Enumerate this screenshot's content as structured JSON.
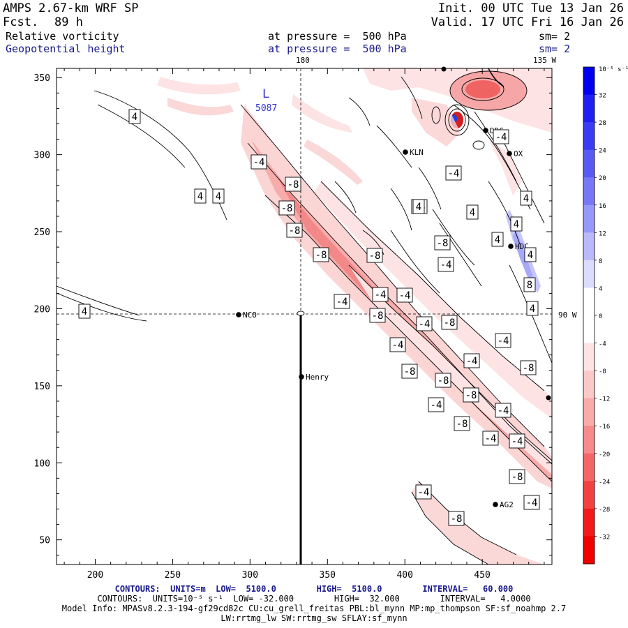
{
  "header": {
    "model": "AMPS 2.67-km WRF SP",
    "forecast_label": "Fcst.",
    "forecast_hours": "89 h",
    "init": "Init. 00 UTC Tue 13 Jan 26",
    "valid": "Valid. 17 UTC Fri 16 Jan 26",
    "field1_name": "Relative vorticity",
    "field1_level": "at pressure =  500 hPa",
    "field1_smooth": "sm= 2",
    "field2_name": "Geopotential height",
    "field2_level": "at pressure =  500 hPa",
    "field2_smooth": "sm= 2"
  },
  "map": {
    "meridian_label_top": "180",
    "meridian_label_top_right": "135 W",
    "meridian_label_right": "90 W",
    "low_label": "L",
    "low_value": "5087",
    "x_ticks": [
      "200",
      "250",
      "300",
      "350",
      "400",
      "450"
    ],
    "y_ticks": [
      "50",
      "100",
      "150",
      "200",
      "250",
      "300",
      "350"
    ],
    "stations": [
      {
        "name": "NCO"
      },
      {
        "name": "Henry"
      },
      {
        "name": "KLN"
      },
      {
        "name": "DDC"
      },
      {
        "name": "HDC"
      },
      {
        "name": "AG2"
      },
      {
        "name": "OX"
      }
    ],
    "contour_labels": [
      "4",
      "4",
      "4",
      "4",
      "-4",
      "-8",
      "-8",
      "-8",
      "-8",
      "-4",
      "-8",
      "-4",
      "-4",
      "-8",
      "-4",
      "-8",
      "-4",
      "-8",
      "-8",
      "-4",
      "-8",
      "-4",
      "-4",
      "-8",
      "-4",
      "-8",
      "-4",
      "-4",
      "-8",
      "-4",
      "-4",
      "-8",
      "-4",
      "-4",
      "4",
      "4",
      "4",
      "4",
      "8",
      "4",
      "-8",
      "-4",
      "-4",
      "4",
      "4"
    ]
  },
  "colorbar": {
    "unit": "10⁻⁵ s⁻¹",
    "ticks": [
      "32",
      "28",
      "24",
      "20",
      "16",
      "12",
      "8",
      "4",
      "0",
      "-4",
      "-8",
      "-12",
      "-16",
      "-20",
      "-24",
      "-28",
      "-32"
    ],
    "colors": [
      "#0000f0",
      "#1f1ff2",
      "#3b3bf4",
      "#5959f5",
      "#7777f7",
      "#9898f9",
      "#b9b9fb",
      "#dcdcfd",
      "#ffffff",
      "#ffffff",
      "#fde3e3",
      "#fbc8c8",
      "#f9aaaa",
      "#f78a8a",
      "#f56767",
      "#f34141",
      "#f21a1a",
      "#f00000"
    ]
  },
  "footer": {
    "line1": "CONTOURS:  UNITS=m  LOW=  5100.0        HIGH=  5100.0        INTERVAL=   60.000",
    "line2": "CONTOURS:  UNITS=10⁻⁵ s⁻¹  LOW= -32.000        HIGH=  32.000        INTERVAL=   4.0000",
    "line3": "Model Info: MPASv8.2.3-194-gf29cd82c CU:cu_grell_freitas PBL:bl_mynn MP:mp_thompson SF:sf_noahmp 2.7",
    "line4": "LW:rrtmg_lw SW:rrtmg_sw SFLAY:sf_mynn"
  }
}
